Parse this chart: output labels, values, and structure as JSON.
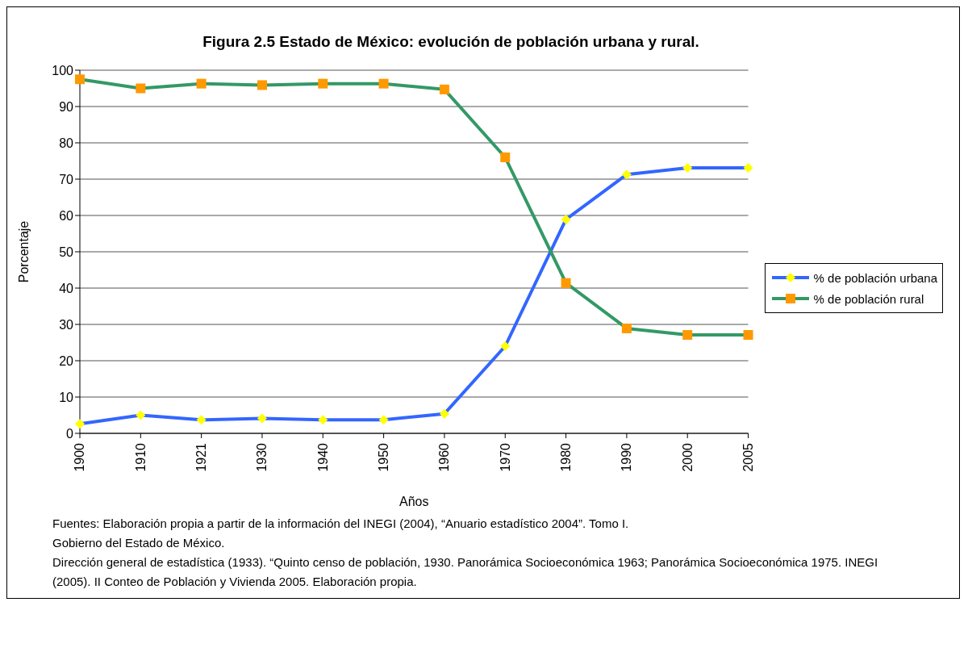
{
  "chart_data": {
    "type": "line",
    "title": "Figura 2.5 Estado de México: evolución de población urbana y rural.",
    "xlabel": "Años",
    "ylabel": "Porcentaje",
    "categories": [
      "1900",
      "1910",
      "1921",
      "1930",
      "1940",
      "1950",
      "1960",
      "1970",
      "1980",
      "1990",
      "2000",
      "2005"
    ],
    "series": [
      {
        "name": "% de población urbana",
        "color": "#3366ff",
        "marker": "diamond",
        "colors": [
          "#ffff00",
          "#ffff00",
          "#ffff00",
          "#ffff00",
          "#ffff00",
          "#ffff00",
          "#ffff00",
          "#ffff00",
          "#ffff00",
          "#ffff00",
          "#ffff00",
          "#ffff00"
        ],
        "values": [
          2.6,
          5,
          3.7,
          4.1,
          3.7,
          3.7,
          5.4,
          24,
          58.9,
          71.3,
          73.1,
          73.1
        ]
      },
      {
        "name": "% de población rural",
        "color": "#339966",
        "marker": "square",
        "colors": [
          "#ff9900",
          "#ff9900",
          "#ff9900",
          "#ff9900",
          "#ff9900",
          "#ff9900",
          "#ff9900",
          "#ff9900",
          "#ff9900",
          "#ff9900",
          "#ff9900",
          "#ff9900"
        ],
        "values": [
          97.5,
          95,
          96.3,
          95.9,
          96.3,
          96.3,
          94.7,
          76,
          41.4,
          28.9,
          27.1,
          27.1
        ]
      }
    ],
    "ylim": [
      0,
      100
    ],
    "yticks": [
      0,
      10,
      20,
      30,
      40,
      50,
      60,
      70,
      80,
      90,
      100
    ],
    "grid": "y",
    "legend": "right",
    "line_style": "solid",
    "annotations": [
      "Fuentes: Elaboración propia a partir de la información del INEGI (2004), “Anuario estadístico 2004”. Tomo I.",
      "Gobierno del Estado de México.",
      "Dirección general de estadística (1933). “Quinto censo de población, 1930. Panorámica Socioeconómica 1963; Panorámica Socioeconómica 1975. INEGI (2005). II Conteo de Población y Vivienda 2005. Elaboración propia."
    ]
  }
}
